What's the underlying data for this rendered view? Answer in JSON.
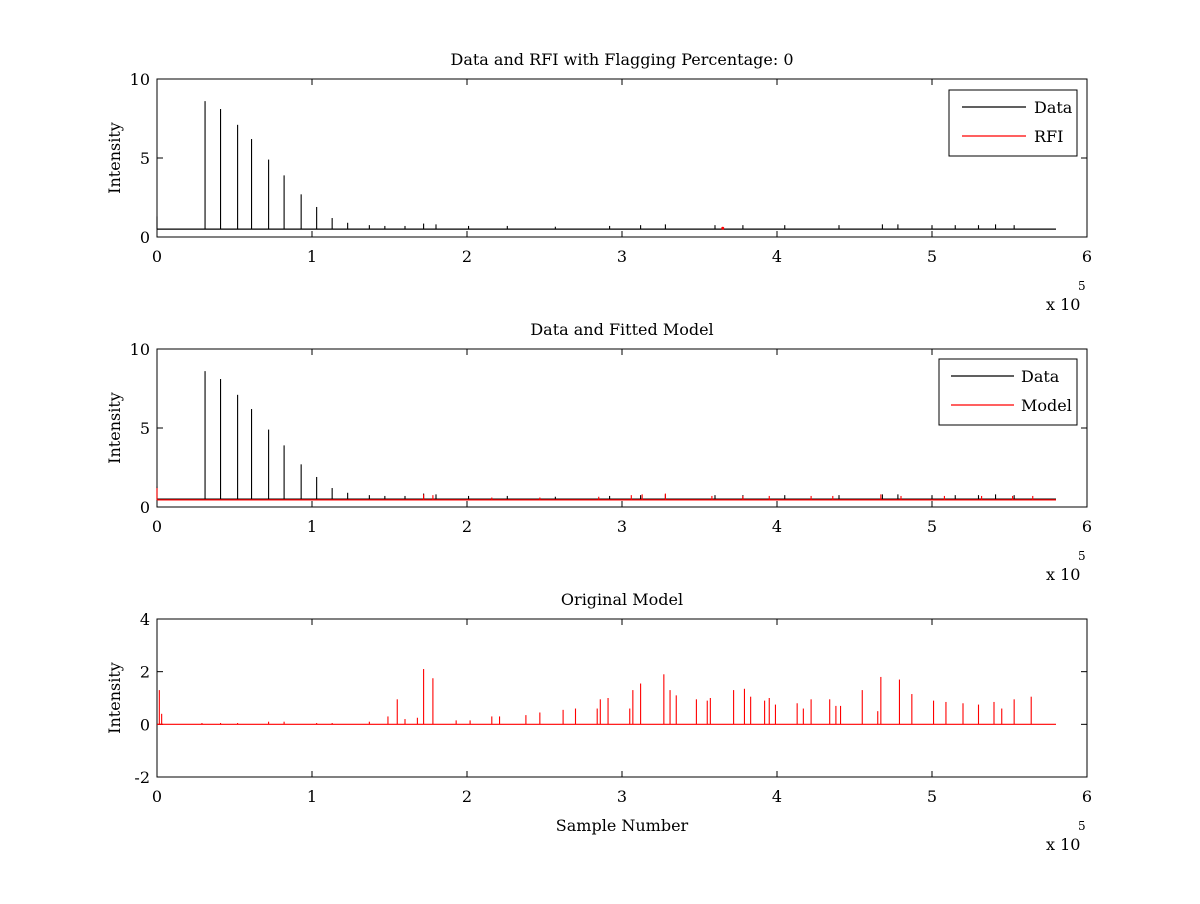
{
  "figure": {
    "background": "#ffffff"
  },
  "chart_data": [
    {
      "type": "line",
      "title": "Data and RFI with Flagging Percentage: 0",
      "xlabel": "",
      "ylabel": "Intensity",
      "xlim": [
        0,
        600000
      ],
      "ylim": [
        0,
        10
      ],
      "xticks": [
        0,
        1,
        2,
        3,
        4,
        5,
        6
      ],
      "yticks": [
        0,
        5,
        10
      ],
      "x_multiplier_label": "x 10",
      "x_multiplier_exponent": "5",
      "legend": "top-right",
      "grid": false,
      "series": [
        {
          "name": "Data",
          "color": "#000000",
          "baseline": 0.5,
          "x_end": 580000,
          "peaks": [
            [
              0,
              1.3
            ],
            [
              31000,
              8.6
            ],
            [
              41000,
              8.1
            ],
            [
              52000,
              7.1
            ],
            [
              61000,
              6.2
            ],
            [
              72000,
              4.9
            ],
            [
              82000,
              3.9
            ],
            [
              93000,
              2.7
            ],
            [
              103000,
              1.9
            ],
            [
              113000,
              1.2
            ],
            [
              123000,
              0.9
            ],
            [
              137000,
              0.75
            ],
            [
              147000,
              0.7
            ],
            [
              160000,
              0.7
            ],
            [
              172000,
              0.85
            ],
            [
              180000,
              0.8
            ],
            [
              201000,
              0.7
            ],
            [
              226000,
              0.7
            ],
            [
              257000,
              0.65
            ],
            [
              292000,
              0.7
            ],
            [
              312000,
              0.75
            ],
            [
              328000,
              0.8
            ],
            [
              360000,
              0.75
            ],
            [
              378000,
              0.75
            ],
            [
              405000,
              0.75
            ],
            [
              440000,
              0.75
            ],
            [
              468000,
              0.8
            ],
            [
              478000,
              0.8
            ],
            [
              500000,
              0.75
            ],
            [
              515000,
              0.75
            ],
            [
              530000,
              0.75
            ],
            [
              541000,
              0.8
            ],
            [
              553000,
              0.75
            ]
          ]
        },
        {
          "name": "RFI",
          "color": "#ff0000",
          "points": [
            [
              365000,
              0.55
            ]
          ]
        }
      ]
    },
    {
      "type": "line",
      "title": "Data and Fitted Model",
      "xlabel": "",
      "ylabel": "Intensity",
      "xlim": [
        0,
        600000
      ],
      "ylim": [
        0,
        10
      ],
      "xticks": [
        0,
        1,
        2,
        3,
        4,
        5,
        6
      ],
      "yticks": [
        0,
        5,
        10
      ],
      "x_multiplier_label": "x 10",
      "x_multiplier_exponent": "5",
      "legend": "top-right",
      "grid": false,
      "series": [
        {
          "name": "Data",
          "color": "#000000",
          "baseline": 0.5,
          "x_end": 580000,
          "peaks": [
            [
              0,
              1.3
            ],
            [
              31000,
              8.6
            ],
            [
              41000,
              8.1
            ],
            [
              52000,
              7.1
            ],
            [
              61000,
              6.2
            ],
            [
              72000,
              4.9
            ],
            [
              82000,
              3.9
            ],
            [
              93000,
              2.7
            ],
            [
              103000,
              1.9
            ],
            [
              113000,
              1.2
            ],
            [
              123000,
              0.9
            ],
            [
              137000,
              0.75
            ],
            [
              147000,
              0.7
            ],
            [
              160000,
              0.7
            ],
            [
              172000,
              0.85
            ],
            [
              180000,
              0.8
            ],
            [
              201000,
              0.7
            ],
            [
              226000,
              0.7
            ],
            [
              257000,
              0.65
            ],
            [
              292000,
              0.7
            ],
            [
              312000,
              0.75
            ],
            [
              328000,
              0.8
            ],
            [
              360000,
              0.75
            ],
            [
              378000,
              0.75
            ],
            [
              405000,
              0.75
            ],
            [
              440000,
              0.75
            ],
            [
              468000,
              0.8
            ],
            [
              478000,
              0.8
            ],
            [
              500000,
              0.75
            ],
            [
              515000,
              0.75
            ],
            [
              530000,
              0.75
            ],
            [
              541000,
              0.8
            ],
            [
              553000,
              0.75
            ]
          ]
        },
        {
          "name": "Model",
          "color": "#ff0000",
          "baseline": 0.45,
          "x_end": 580000,
          "peaks": [
            [
              0,
              1.2
            ],
            [
              172000,
              0.8
            ],
            [
              178000,
              0.75
            ],
            [
              216000,
              0.6
            ],
            [
              247000,
              0.6
            ],
            [
              285000,
              0.65
            ],
            [
              306000,
              0.75
            ],
            [
              313000,
              0.8
            ],
            [
              328000,
              0.85
            ],
            [
              358000,
              0.7
            ],
            [
              378000,
              0.7
            ],
            [
              395000,
              0.7
            ],
            [
              422000,
              0.7
            ],
            [
              436000,
              0.7
            ],
            [
              467000,
              0.8
            ],
            [
              480000,
              0.7
            ],
            [
              508000,
              0.7
            ],
            [
              532000,
              0.7
            ],
            [
              552000,
              0.7
            ],
            [
              565000,
              0.7
            ]
          ]
        }
      ]
    },
    {
      "type": "line",
      "title": "Original Model",
      "xlabel": "Sample Number",
      "ylabel": "Intensity",
      "xlim": [
        0,
        600000
      ],
      "ylim": [
        -2,
        4
      ],
      "xticks": [
        0,
        1,
        2,
        3,
        4,
        5,
        6
      ],
      "yticks": [
        -2,
        0,
        2,
        4
      ],
      "x_multiplier_label": "x 10",
      "x_multiplier_exponent": "5",
      "legend": "none",
      "grid": false,
      "series": [
        {
          "name": "",
          "color": "#ff0000",
          "baseline": 0.0,
          "x_end": 580000,
          "peaks": [
            [
              1500,
              1.3
            ],
            [
              3000,
              0.4
            ],
            [
              29000,
              0.05
            ],
            [
              41000,
              0.05
            ],
            [
              52000,
              0.05
            ],
            [
              72000,
              0.1
            ],
            [
              82000,
              0.1
            ],
            [
              103000,
              0.05
            ],
            [
              113000,
              0.05
            ],
            [
              137000,
              0.1
            ],
            [
              149000,
              0.3
            ],
            [
              155000,
              0.95
            ],
            [
              160000,
              0.2
            ],
            [
              168000,
              0.25
            ],
            [
              172000,
              2.1
            ],
            [
              178000,
              1.75
            ],
            [
              193000,
              0.15
            ],
            [
              202000,
              0.15
            ],
            [
              216000,
              0.3
            ],
            [
              221000,
              0.3
            ],
            [
              238000,
              0.35
            ],
            [
              247000,
              0.45
            ],
            [
              262000,
              0.55
            ],
            [
              270000,
              0.6
            ],
            [
              284000,
              0.6
            ],
            [
              286000,
              0.95
            ],
            [
              291000,
              1.0
            ],
            [
              305000,
              0.6
            ],
            [
              307000,
              1.3
            ],
            [
              312000,
              1.55
            ],
            [
              327000,
              1.9
            ],
            [
              331000,
              1.3
            ],
            [
              335000,
              1.1
            ],
            [
              348000,
              0.95
            ],
            [
              355000,
              0.9
            ],
            [
              357000,
              1.0
            ],
            [
              372000,
              1.3
            ],
            [
              379000,
              1.35
            ],
            [
              383000,
              1.05
            ],
            [
              392000,
              0.9
            ],
            [
              395000,
              1.0
            ],
            [
              399000,
              0.75
            ],
            [
              413000,
              0.8
            ],
            [
              417000,
              0.6
            ],
            [
              422000,
              0.95
            ],
            [
              434000,
              0.95
            ],
            [
              438000,
              0.7
            ],
            [
              441000,
              0.7
            ],
            [
              455000,
              1.3
            ],
            [
              465000,
              0.5
            ],
            [
              467000,
              1.8
            ],
            [
              479000,
              1.7
            ],
            [
              487000,
              1.15
            ],
            [
              501000,
              0.9
            ],
            [
              509000,
              0.85
            ],
            [
              520000,
              0.8
            ],
            [
              530000,
              0.75
            ],
            [
              540000,
              0.85
            ],
            [
              545000,
              0.6
            ],
            [
              553000,
              0.95
            ],
            [
              564000,
              1.05
            ]
          ]
        }
      ]
    }
  ]
}
